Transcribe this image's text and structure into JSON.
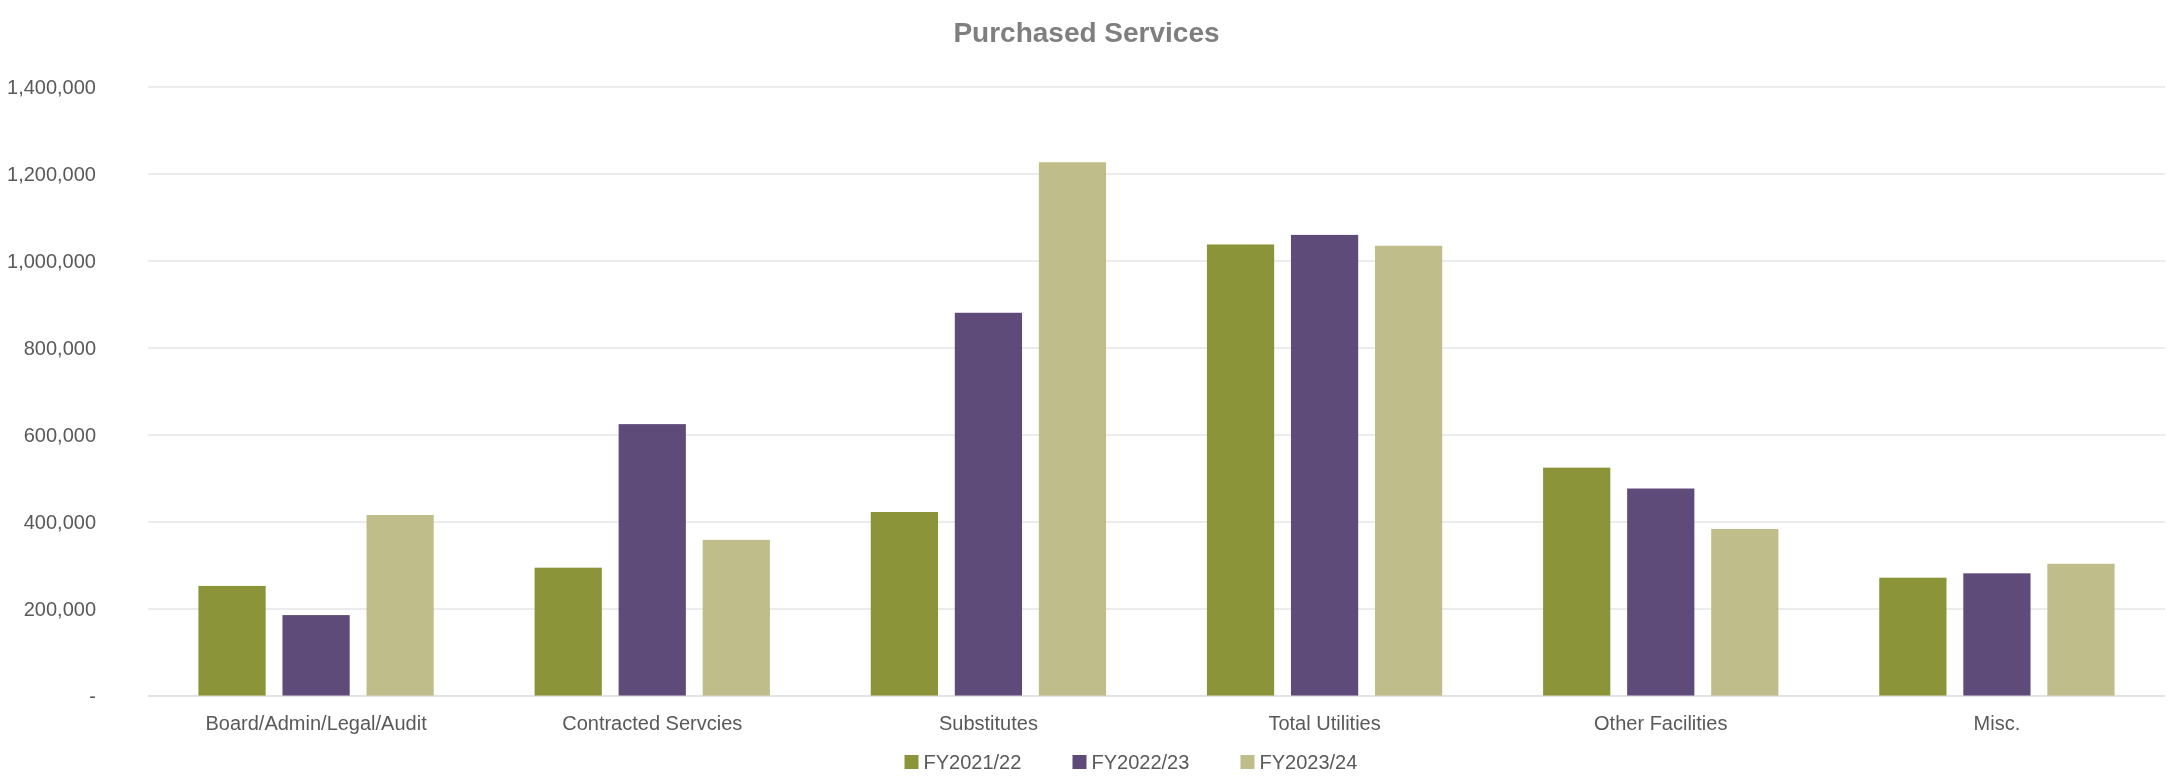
{
  "chart_data": {
    "type": "bar",
    "title": "Purchased Services",
    "categories": [
      "Board/Admin/Legal/Audit",
      "Contracted Servcies",
      "Substitutes",
      "Total Utilities",
      "Other Facilities",
      "Misc."
    ],
    "series": [
      {
        "name": "FY2021/22",
        "color": "#8b9438",
        "values": [
          253000,
          295000,
          423000,
          1038000,
          525000,
          272000
        ]
      },
      {
        "name": "FY2022/23",
        "color": "#5f4b7a",
        "values": [
          186000,
          625000,
          881000,
          1060000,
          477000,
          282000
        ]
      },
      {
        "name": "FY2023/24",
        "color": "#bfbe8b",
        "values": [
          416000,
          359000,
          1227000,
          1035000,
          384000,
          304000
        ]
      }
    ],
    "ylim": [
      0,
      1400000
    ],
    "yticks": [
      {
        "value": 0,
        "label": "-"
      },
      {
        "value": 200000,
        "label": "200,000"
      },
      {
        "value": 400000,
        "label": "400,000"
      },
      {
        "value": 600000,
        "label": "600,000"
      },
      {
        "value": 800000,
        "label": "800,000"
      },
      {
        "value": 1000000,
        "label": "1,000,000"
      },
      {
        "value": 1200000,
        "label": "1,200,000"
      },
      {
        "value": 1400000,
        "label": "1,400,000"
      }
    ],
    "grid": "y",
    "legend": "bottom"
  }
}
